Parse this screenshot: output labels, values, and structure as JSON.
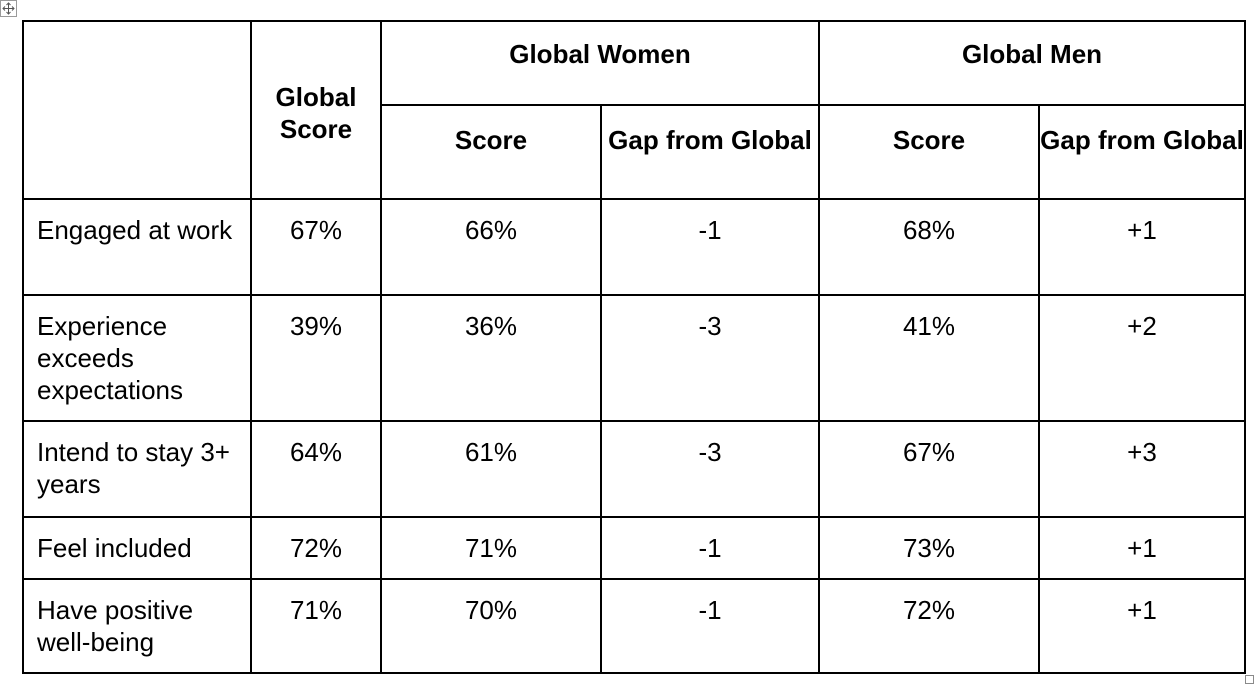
{
  "table": {
    "header": {
      "global_score": "Global Score",
      "global_women": "Global Women",
      "global_men": "Global Men",
      "women_score": "Score",
      "women_gap": "Gap from Global",
      "men_score": "Score",
      "men_gap": "Gap from Global"
    },
    "rows": [
      {
        "label": "Engaged at work",
        "global": "67%",
        "women_score": "66%",
        "women_gap": "-1",
        "men_score": "68%",
        "men_gap": "+1"
      },
      {
        "label": "Experience exceeds expectations",
        "global": "39%",
        "women_score": "36%",
        "women_gap": "-3",
        "men_score": "41%",
        "men_gap": "+2"
      },
      {
        "label": "Intend to stay 3+ years",
        "global": "64%",
        "women_score": "61%",
        "women_gap": "-3",
        "men_score": "67%",
        "men_gap": "+3"
      },
      {
        "label": "Feel included",
        "global": "72%",
        "women_score": "71%",
        "women_gap": "-1",
        "men_score": "73%",
        "men_gap": "+1"
      },
      {
        "label": "Have positive well-being",
        "global": "71%",
        "women_score": "70%",
        "women_gap": "-1",
        "men_score": "72%",
        "men_gap": "+1"
      }
    ]
  },
  "icons": {
    "move_handle": "move-arrows-icon",
    "resize_handle": "resize-handle-icon"
  }
}
